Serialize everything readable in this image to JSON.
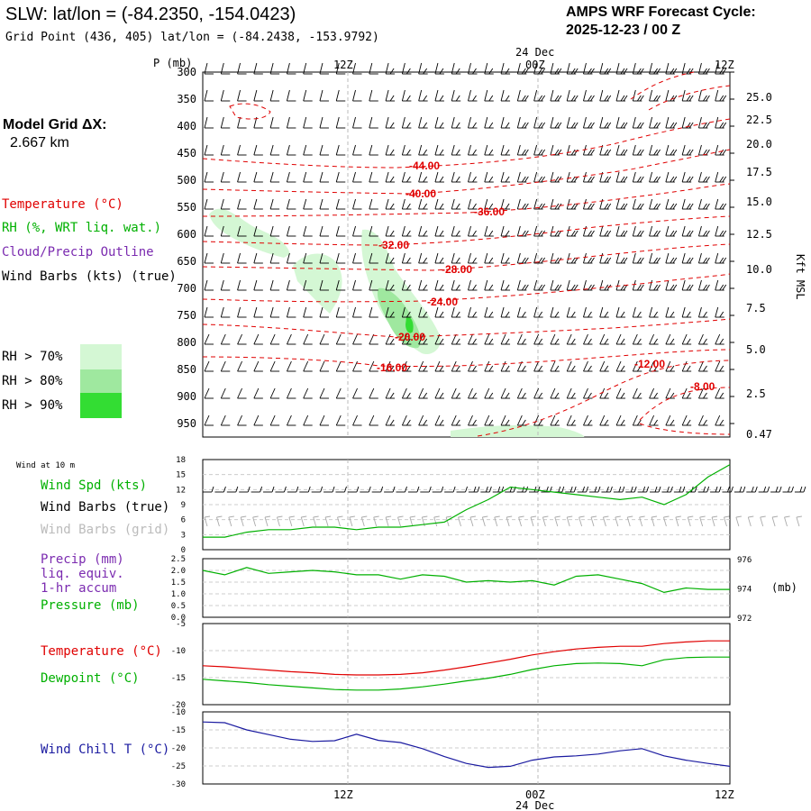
{
  "header": {
    "station_title": "SLW:  lat/lon = (-84.2350, -154.0423)",
    "grid_point": "Grid Point (436, 405) lat/lon = (-84.2438, -153.9792)",
    "cycle_title": "AMPS WRF Forecast Cycle:",
    "cycle_value": "2025-12-23 / 00  Z"
  },
  "model_grid": {
    "label": "Model Grid ΔX:",
    "value": "2.667 km"
  },
  "time_axis": {
    "ticks": [
      "12Z",
      "00Z",
      "12Z"
    ],
    "date_label": "24 Dec"
  },
  "sounding": {
    "pressure_label": "P (mb)",
    "pressure_ticks": [
      300,
      350,
      400,
      450,
      500,
      550,
      600,
      650,
      700,
      750,
      800,
      850,
      900,
      950
    ],
    "height_ticks": [
      "25.0",
      "22.5",
      "20.0",
      "17.5",
      "15.0",
      "12.5",
      "10.0",
      "7.5",
      "5.0",
      "2.5",
      "0.47"
    ],
    "height_label": "Kft MSL",
    "legend": [
      {
        "text": "Temperature (°C)",
        "color": "#e00000"
      },
      {
        "text": "RH (%, WRT liq. wat.)",
        "color": "#00b000"
      },
      {
        "text": "Cloud/Precip Outline",
        "color": "#7b2bb0"
      },
      {
        "text": "Wind Barbs (kts) (true)",
        "color": "#000000"
      }
    ],
    "rh_legend": [
      {
        "text": "RH > 70%",
        "color": "#d4f7d4"
      },
      {
        "text": "RH > 80%",
        "color": "#9fe89f"
      },
      {
        "text": "RH > 90%",
        "color": "#33dd33"
      }
    ],
    "contour_labels": [
      "-44.00",
      "-40.00",
      "-36.00",
      "-32.00",
      "-28.00",
      "-24.00",
      "-20.00",
      "-16.00",
      "-12.00",
      "-8.00"
    ]
  },
  "wind_panel": {
    "title": "Wind at 10 m",
    "legend": [
      {
        "text": "Wind Spd (kts)",
        "color": "#00b000"
      },
      {
        "text": "Wind Barbs (true)",
        "color": "#000000"
      },
      {
        "text": "Wind Barbs (grid)",
        "color": "#bbbbbb"
      }
    ],
    "y_ticks": [
      0,
      3,
      6,
      9,
      12,
      15,
      18
    ]
  },
  "precip_panel": {
    "legend": [
      {
        "text": "Precip (mm)",
        "color": "#7b2bb0"
      },
      {
        "text": "liq. equiv.",
        "color": "#7b2bb0"
      },
      {
        "text": "1-hr accum",
        "color": "#7b2bb0"
      },
      {
        "text": "Pressure (mb)",
        "color": "#00b000"
      }
    ],
    "y_ticks": [
      "0.0",
      "0.5",
      "1.0",
      "1.5",
      "2.0",
      "2.5"
    ],
    "right_ticks": [
      "976",
      "974",
      "972"
    ],
    "right_unit": "(mb)"
  },
  "temp_panel": {
    "legend": [
      {
        "text": "Temperature (°C)",
        "color": "#e00000"
      },
      {
        "text": "Dewpoint (°C)",
        "color": "#00b000"
      }
    ],
    "y_ticks": [
      -5,
      -10,
      -15,
      -20
    ]
  },
  "chill_panel": {
    "legend": [
      {
        "text": "Wind Chill T (°C)",
        "color": "#1a1aa0"
      }
    ],
    "y_ticks": [
      -10,
      -15,
      -20,
      -25,
      -30
    ]
  },
  "chart_data": [
    {
      "type": "line",
      "name": "sounding",
      "x_hours": [
        0,
        24
      ],
      "y_pressure_range": [
        975,
        300
      ],
      "temperature_contours": [
        -44,
        -40,
        -36,
        -32,
        -28,
        -24,
        -20,
        -16,
        -12,
        -8
      ]
    },
    {
      "type": "line",
      "name": "wind10m",
      "x_hours": [
        0,
        1,
        2,
        3,
        4,
        5,
        6,
        7,
        8,
        9,
        10,
        11,
        12,
        13,
        14,
        15,
        16,
        17,
        18,
        19,
        20,
        21,
        22,
        23,
        24
      ],
      "series": [
        {
          "name": "Wind Spd (kts)",
          "color": "#00b000",
          "values": [
            2.5,
            2.5,
            3.5,
            4,
            4,
            4.5,
            4.5,
            4,
            4.5,
            4.5,
            5,
            5.5,
            8,
            10,
            12.5,
            12,
            11.5,
            11,
            10.5,
            10,
            10.5,
            9,
            11,
            14.5,
            17
          ]
        }
      ],
      "ylim": [
        0,
        18
      ]
    },
    {
      "type": "line",
      "name": "pressure",
      "x_hours": [
        0,
        1,
        2,
        3,
        4,
        5,
        6,
        7,
        8,
        9,
        10,
        11,
        12,
        13,
        14,
        15,
        16,
        17,
        18,
        19,
        20,
        21,
        22,
        23,
        24
      ],
      "series": [
        {
          "name": "Pressure (mb)",
          "color": "#00b000",
          "values": [
            975.2,
            974.9,
            975.4,
            975.0,
            975.1,
            975.2,
            975.1,
            974.9,
            974.9,
            974.6,
            974.9,
            974.8,
            974.4,
            974.5,
            974.4,
            974.5,
            974.2,
            974.8,
            974.9,
            974.6,
            974.3,
            973.7,
            974.0,
            973.9,
            973.9
          ]
        }
      ],
      "ylim": [
        972,
        976
      ],
      "precip_ylim": [
        0,
        2.5
      ]
    },
    {
      "type": "line",
      "name": "temperature",
      "x_hours": [
        0,
        1,
        2,
        3,
        4,
        5,
        6,
        7,
        8,
        9,
        10,
        11,
        12,
        13,
        14,
        15,
        16,
        17,
        18,
        19,
        20,
        21,
        22,
        23,
        24
      ],
      "series": [
        {
          "name": "Temperature (°C)",
          "color": "#e00000",
          "values": [
            -12.8,
            -13.0,
            -13.3,
            -13.6,
            -13.9,
            -14.1,
            -14.4,
            -14.5,
            -14.5,
            -14.4,
            -14.1,
            -13.6,
            -13.0,
            -12.3,
            -11.6,
            -10.8,
            -10.2,
            -9.7,
            -9.4,
            -9.2,
            -9.2,
            -8.7,
            -8.4,
            -8.2,
            -8.2
          ]
        },
        {
          "name": "Dewpoint (°C)",
          "color": "#00b000",
          "values": [
            -15.3,
            -15.6,
            -15.9,
            -16.3,
            -16.6,
            -16.9,
            -17.2,
            -17.3,
            -17.3,
            -17.1,
            -16.7,
            -16.2,
            -15.6,
            -15.1,
            -14.4,
            -13.5,
            -12.8,
            -12.4,
            -12.3,
            -12.4,
            -12.8,
            -11.7,
            -11.3,
            -11.2,
            -11.2
          ]
        }
      ],
      "ylim": [
        -20,
        -5
      ]
    },
    {
      "type": "line",
      "name": "windchill",
      "x_hours": [
        0,
        1,
        2,
        3,
        4,
        5,
        6,
        7,
        8,
        9,
        10,
        11,
        12,
        13,
        14,
        15,
        16,
        17,
        18,
        19,
        20,
        21,
        22,
        23,
        24
      ],
      "series": [
        {
          "name": "Wind Chill T (°C)",
          "color": "#1a1aa0",
          "values": [
            -12.8,
            -13.0,
            -15.0,
            -16.3,
            -17.6,
            -18.2,
            -18.0,
            -16.2,
            -17.9,
            -18.5,
            -20.2,
            -22.4,
            -24.3,
            -25.4,
            -25.1,
            -23.4,
            -22.5,
            -22.2,
            -21.7,
            -20.8,
            -20.2,
            -22.2,
            -23.4,
            -24.3,
            -25.1
          ]
        }
      ],
      "ylim": [
        -30,
        -10
      ]
    }
  ]
}
